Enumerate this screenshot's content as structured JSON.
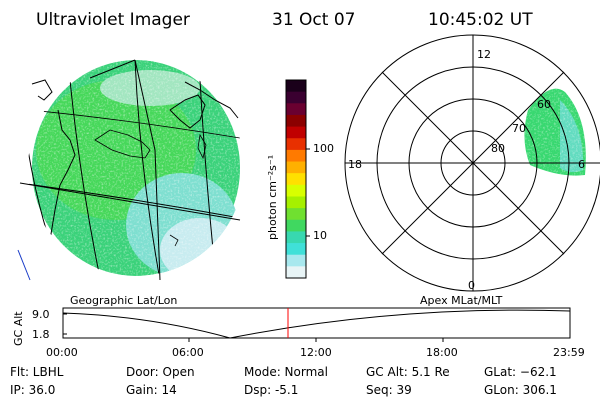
{
  "header": {
    "instrument": "Ultraviolet Imager",
    "date": "31 Oct 07",
    "time": "10:45:02 UT"
  },
  "colorbar": {
    "unit_label": "photon cm⁻²s⁻¹",
    "ticks": [
      "100",
      "10"
    ],
    "colors": [
      "#1a001a",
      "#3a0030",
      "#6a0030",
      "#8b0000",
      "#c00000",
      "#e83000",
      "#ff7a00",
      "#ffb000",
      "#ffe000",
      "#d8ff00",
      "#a6f000",
      "#70e030",
      "#40d860",
      "#38d8b0",
      "#40e0d8",
      "#a8e8ee",
      "#e8f4f6"
    ]
  },
  "polar_plot": {
    "mlt_labels": {
      "top": "12",
      "left": "18",
      "right": "6",
      "bottom": "0"
    },
    "lat_labels": [
      "60",
      "70",
      "80"
    ]
  },
  "map_labels": {
    "left": "Geographic Lat/Lon",
    "right": "Apex MLat/MLT"
  },
  "altitude_plot": {
    "axis_label": "GC Alt",
    "y_ticks": [
      "9.0",
      "1.8"
    ],
    "x_ticks": [
      "00:00",
      "06:00",
      "12:00",
      "18:00",
      "23:59"
    ],
    "marker_color": "#ff0000"
  },
  "status": {
    "flt": "Flt: LBHL",
    "ip": "IP: 36.0",
    "door": "Door: Open",
    "gain": "Gain: 14",
    "mode": "Mode: Normal",
    "dsp": "Dsp:    -5.1",
    "gc_alt": "GC Alt: 5.1 Re",
    "seq": "Seq: 39",
    "glat": "GLat: −62.1",
    "glon": "GLon: 306.1"
  }
}
